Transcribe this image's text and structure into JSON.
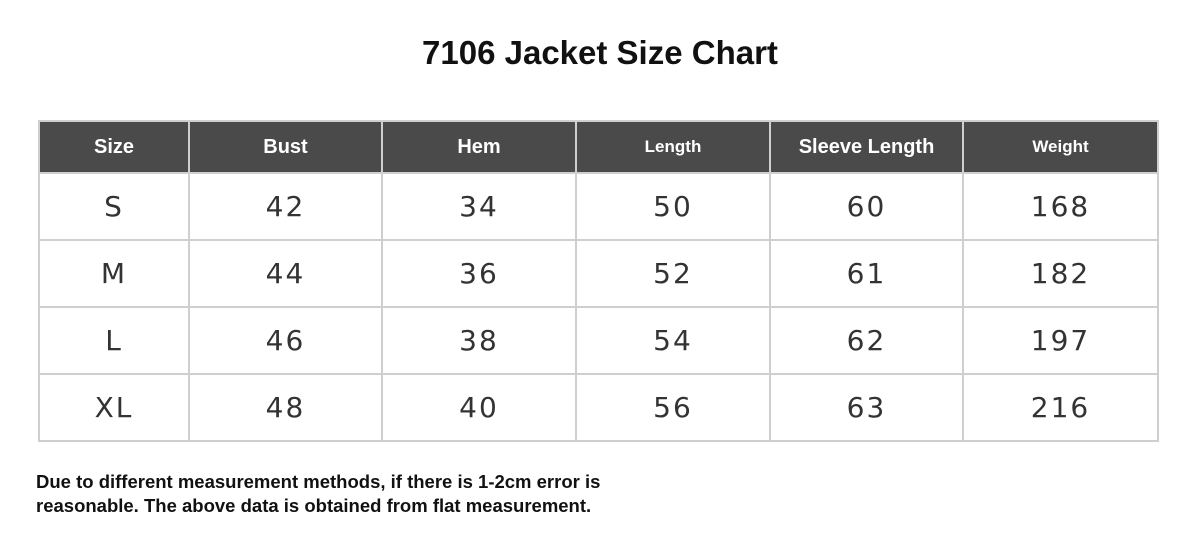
{
  "title": "7106 Jacket Size Chart",
  "table": {
    "headers": [
      "Size",
      "Bust",
      "Hem",
      "Length",
      "Sleeve Length",
      "Weight"
    ],
    "rows": [
      [
        "S",
        "42",
        "34",
        "50",
        "60",
        "168"
      ],
      [
        "M",
        "44",
        "36",
        "52",
        "61",
        "182"
      ],
      [
        "L",
        "46",
        "38",
        "54",
        "62",
        "197"
      ],
      [
        "XL",
        "48",
        "40",
        "56",
        "63",
        "216"
      ]
    ]
  },
  "note": {
    "line1": "Due to different measurement methods, if there is 1-2cm error is",
    "line2": "reasonable. The above data is obtained from flat measurement."
  },
  "colors": {
    "header_bg": "#4a4a4a",
    "header_text": "#ffffff",
    "border": "#cfcfcf"
  }
}
